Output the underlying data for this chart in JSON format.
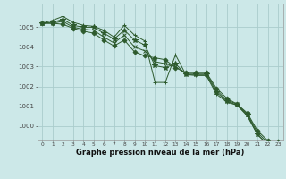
{
  "xlabel": "Graphe pression niveau de la mer (hPa)",
  "background_color": "#cce8e8",
  "grid_color": "#aacccc",
  "line_color": "#2d5a2d",
  "x_values": [
    0,
    1,
    2,
    3,
    4,
    5,
    6,
    7,
    8,
    9,
    10,
    11,
    12,
    13,
    14,
    15,
    16,
    17,
    18,
    19,
    20,
    21,
    22,
    23
  ],
  "series": [
    [
      1005.2,
      1005.35,
      1005.55,
      1005.25,
      1005.1,
      1005.05,
      1004.85,
      1004.5,
      1005.1,
      1004.6,
      1004.3,
      1002.2,
      1002.2,
      1003.6,
      1002.6,
      1002.55,
      1002.55,
      1001.6,
      1001.2,
      1001.05,
      1000.5,
      999.55,
      999.05,
      999.0
    ],
    [
      1005.2,
      1005.25,
      1005.4,
      1005.1,
      1005.0,
      1005.0,
      1004.7,
      1004.4,
      1004.85,
      1004.35,
      1004.1,
      1003.05,
      1002.95,
      1003.15,
      1002.6,
      1002.6,
      1002.6,
      1001.7,
      1001.25,
      1001.05,
      1000.55,
      999.55,
      999.05,
      999.0
    ],
    [
      1005.2,
      1005.2,
      1005.3,
      1005.0,
      1004.9,
      1004.85,
      1004.5,
      1004.2,
      1004.6,
      1004.0,
      1003.8,
      1003.25,
      1003.15,
      1003.0,
      1002.65,
      1002.65,
      1002.65,
      1001.8,
      1001.3,
      1001.1,
      1000.6,
      999.65,
      999.15,
      999.1
    ],
    [
      1005.2,
      1005.2,
      1005.15,
      1004.95,
      1004.8,
      1004.7,
      1004.35,
      1004.05,
      1004.35,
      1003.75,
      1003.55,
      1003.45,
      1003.35,
      1002.95,
      1002.7,
      1002.7,
      1002.7,
      1001.9,
      1001.4,
      1001.1,
      1000.65,
      999.75,
      999.25,
      999.2
    ]
  ],
  "ylim": [
    999.3,
    1006.2
  ],
  "yticks": [
    1000,
    1001,
    1002,
    1003,
    1004,
    1005
  ],
  "xticks": [
    0,
    1,
    2,
    3,
    4,
    5,
    6,
    7,
    8,
    9,
    10,
    11,
    12,
    13,
    14,
    15,
    16,
    17,
    18,
    19,
    20,
    21,
    22,
    23
  ],
  "marker_styles": [
    "+",
    "*",
    "x",
    "D"
  ],
  "marker_sizes": [
    3.5,
    4,
    3,
    2.5
  ],
  "linewidth": 0.7,
  "xlabel_fontsize": 6.0,
  "ytick_fontsize": 5.0,
  "xtick_fontsize": 4.2
}
